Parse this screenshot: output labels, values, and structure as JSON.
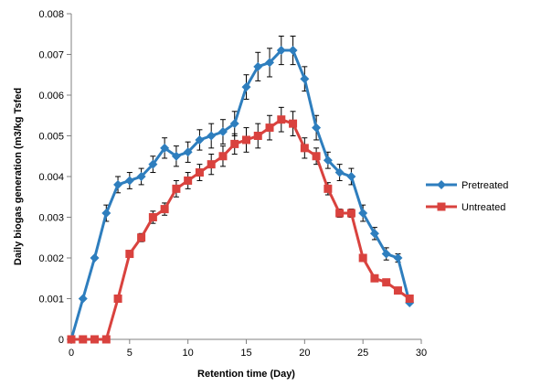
{
  "chart_data": {
    "type": "line",
    "title": "",
    "xlabel": "Retention time (Day)",
    "ylabel": "Daily biogas generation (m3/kg Tsfed",
    "xlim": [
      0,
      30
    ],
    "ylim": [
      0,
      0.008
    ],
    "xticks": [
      0,
      5,
      10,
      15,
      20,
      25,
      30
    ],
    "yticks": [
      0,
      0.001,
      0.002,
      0.003,
      0.004,
      0.005,
      0.006,
      0.007,
      0.008
    ],
    "ytick_labels": [
      "0",
      "0.001",
      "0.002",
      "0.003",
      "0.004",
      "0.005",
      "0.006",
      "0.007",
      "0.008"
    ],
    "grid": false,
    "legend_position": "right",
    "series": [
      {
        "name": "Pretreated",
        "color": "#2E7EBE",
        "marker": "diamond",
        "x": [
          0,
          1,
          2,
          3,
          4,
          5,
          6,
          7,
          8,
          9,
          10,
          11,
          12,
          13,
          14,
          15,
          16,
          17,
          18,
          19,
          20,
          21,
          22,
          23,
          24,
          25,
          26,
          27,
          28,
          29
        ],
        "values": [
          0,
          0.001,
          0.002,
          0.0031,
          0.0038,
          0.0039,
          0.004,
          0.0043,
          0.0047,
          0.0045,
          0.0046,
          0.0049,
          0.005,
          0.0051,
          0.0053,
          0.0062,
          0.0067,
          0.0068,
          0.0071,
          0.0071,
          0.0064,
          0.0052,
          0.0044,
          0.0041,
          0.004,
          0.0031,
          0.0026,
          0.0021,
          0.002,
          0.0009
        ],
        "error": [
          0,
          0,
          0,
          0.0002,
          0.0002,
          0.0002,
          0.0002,
          0.0002,
          0.00025,
          0.00025,
          0.00025,
          0.00025,
          0.0003,
          0.0003,
          0.0003,
          0.0003,
          0.00035,
          0.00035,
          0.00035,
          0.00035,
          0.0003,
          0.0003,
          0.0002,
          0.0002,
          0.0002,
          0.0002,
          0.00015,
          0.00015,
          0.0001,
          0
        ]
      },
      {
        "name": "Untreated",
        "color": "#D9423E",
        "marker": "square",
        "x": [
          0,
          1,
          2,
          3,
          4,
          5,
          6,
          7,
          8,
          9,
          10,
          11,
          12,
          13,
          14,
          15,
          16,
          17,
          18,
          19,
          20,
          21,
          22,
          23,
          24,
          25,
          26,
          27,
          28,
          29
        ],
        "values": [
          0,
          0,
          0,
          0,
          0.001,
          0.0021,
          0.0025,
          0.003,
          0.0032,
          0.0037,
          0.0039,
          0.0041,
          0.0043,
          0.0045,
          0.0048,
          0.0049,
          0.005,
          0.0052,
          0.0054,
          0.0053,
          0.0047,
          0.0045,
          0.0037,
          0.0031,
          0.0031,
          0.002,
          0.0015,
          0.0014,
          0.0012,
          0.001
        ],
        "error": [
          0,
          0,
          0,
          0,
          0,
          0,
          0.0001,
          0.00015,
          0.00015,
          0.0002,
          0.0002,
          0.0002,
          0.00025,
          0.00025,
          0.00025,
          0.0003,
          0.0003,
          0.0003,
          0.0003,
          0.0003,
          0.00025,
          0.0002,
          0.00015,
          0.0001,
          0.0001,
          0,
          0,
          0,
          0,
          0
        ]
      }
    ]
  }
}
